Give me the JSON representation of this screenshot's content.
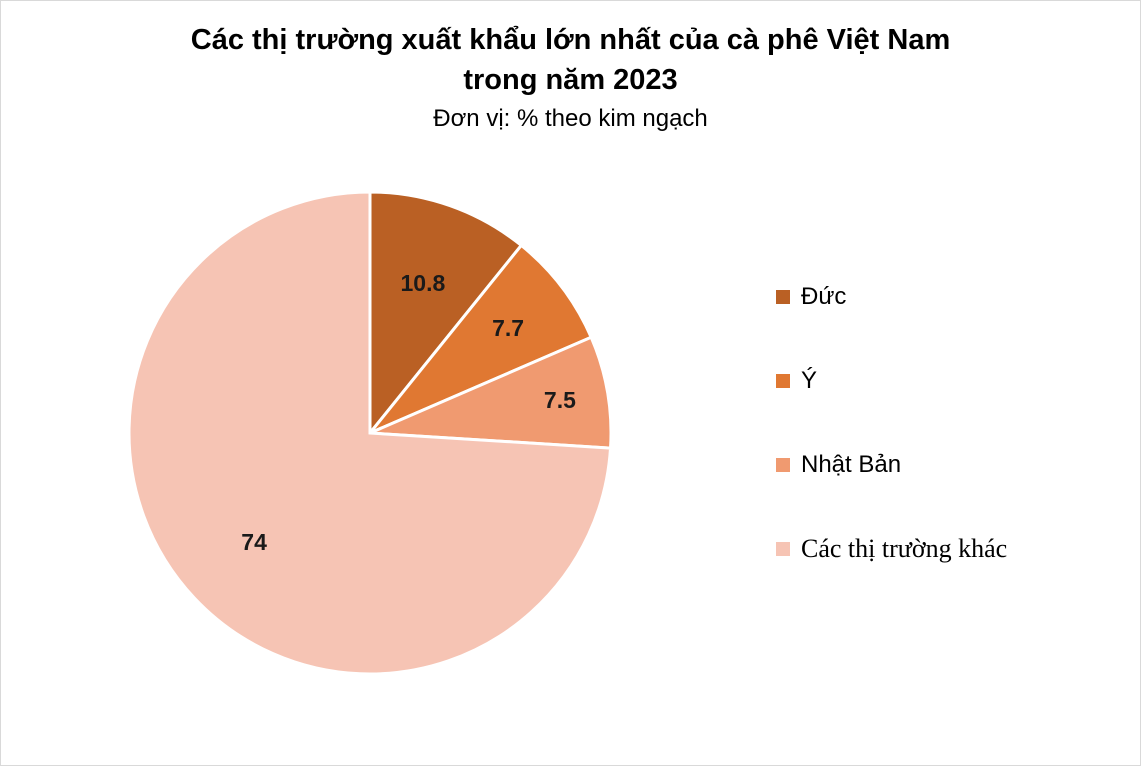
{
  "chart_data": {
    "type": "pie",
    "title_line1": "Các thị trường xuất khẩu lớn nhất của cà phê Việt Nam",
    "title_line2": "trong năm 2023",
    "subtitle": "Đơn vị: % theo kim ngạch",
    "slices": [
      {
        "label": "Đức",
        "value": 10.8,
        "display": "10.8",
        "color": "#BA6024"
      },
      {
        "label": "Ý",
        "value": 7.7,
        "display": "7.7",
        "color": "#E07832"
      },
      {
        "label": "Nhật Bản",
        "value": 7.5,
        "display": "7.5",
        "color": "#F09A70"
      },
      {
        "label": "Các thị trường khác",
        "value": 74,
        "display": "74",
        "color": "#F6C4B4"
      }
    ],
    "start_angle_deg": 0,
    "direction": "clockwise",
    "data_labels": true,
    "legend_position": "right"
  }
}
